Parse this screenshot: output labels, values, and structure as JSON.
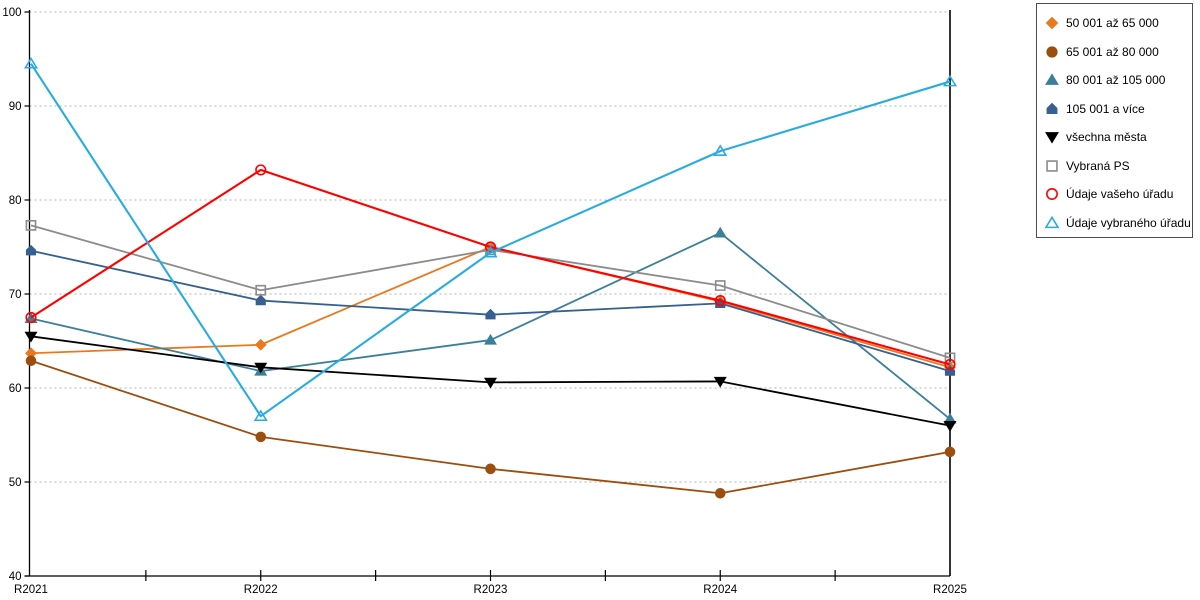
{
  "chart_data": {
    "type": "line",
    "title": "",
    "xlabel": "",
    "ylabel": "",
    "categories": [
      "R2021",
      "R2022",
      "R2023",
      "R2024",
      "R2025"
    ],
    "ylim": [
      40,
      100
    ],
    "yticks": [
      40,
      50,
      60,
      70,
      80,
      90,
      100
    ],
    "grid": "horizontal-dotted",
    "legend_position": "top-right-outside",
    "series": [
      {
        "name": "50 001 až 65 000",
        "color": "#E8791E",
        "marker": "diamond",
        "style": "filled",
        "values": [
          63.7,
          64.6,
          75.0,
          69.2,
          62.2
        ]
      },
      {
        "name": "65 001 až 80 000",
        "color": "#9C4E0E",
        "marker": "circle",
        "style": "filled",
        "values": [
          62.9,
          54.8,
          51.4,
          48.8,
          53.2
        ]
      },
      {
        "name": "80 001 až 105 000",
        "color": "#3C7F99",
        "marker": "triangle-up",
        "style": "filled",
        "values": [
          67.4,
          61.8,
          65.1,
          76.5,
          56.7
        ]
      },
      {
        "name": "105 001 a více",
        "color": "#36608F",
        "marker": "pentagon",
        "style": "filled",
        "values": [
          74.6,
          69.3,
          67.8,
          69.0,
          61.8
        ]
      },
      {
        "name": "všechna města",
        "color": "#000000",
        "marker": "triangle-down",
        "style": "filled",
        "values": [
          65.5,
          62.2,
          60.6,
          60.7,
          56.0
        ]
      },
      {
        "name": "Vybraná PS",
        "color": "#8C8C8C",
        "marker": "square",
        "style": "open",
        "values": [
          77.3,
          70.4,
          74.7,
          70.9,
          63.2
        ]
      },
      {
        "name": "Údaje vašeho úřadu",
        "color": "#FF0000",
        "marker": "circle",
        "style": "open",
        "values": [
          67.5,
          83.2,
          75.0,
          69.3,
          62.5
        ]
      },
      {
        "name": "Údaje vybraného úřadu",
        "color": "#29ABE2",
        "marker": "triangle-up",
        "style": "open",
        "values": [
          94.5,
          57.0,
          74.4,
          85.2,
          92.6
        ]
      }
    ],
    "colors": {
      "axis": "#000000",
      "gridline": "#B3B3B3",
      "tick_label": "#000000",
      "legend_border": "#4d4d4d"
    }
  }
}
